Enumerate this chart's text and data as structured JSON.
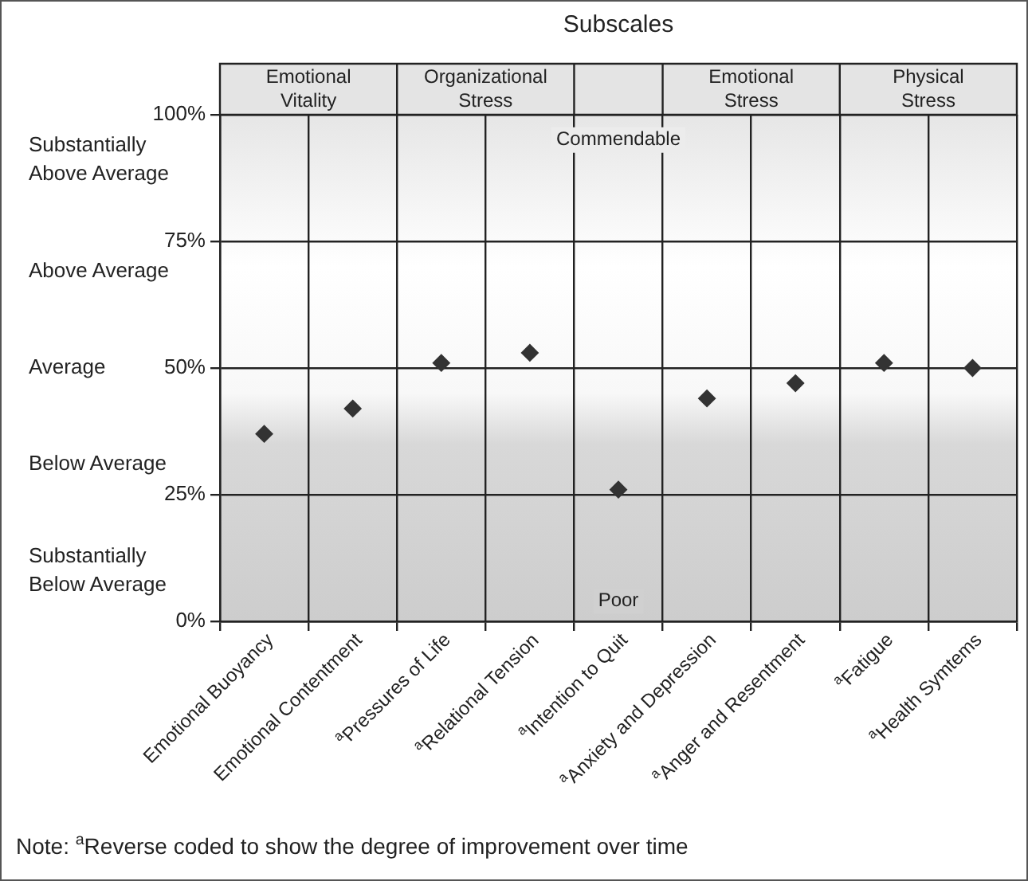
{
  "chart_data": {
    "type": "scatter",
    "title": "Subscales",
    "categories": [
      "Emotional Buoyancy",
      "Emotional Contentment",
      "$^{a}$Pressures of Life",
      "$^{a}$Relational Tension",
      "$^{a}$Intention to Quit",
      "$^{a}$Anxiety and Depression",
      "$^{a}$Anger and Resentment",
      "$^{a}$Fatigue",
      "$^{a}$Health Symtems"
    ],
    "values": [
      37,
      42,
      51,
      53,
      26,
      44,
      47,
      51,
      50
    ],
    "color": "#333333",
    "marker": "diamond",
    "grid": true,
    "legend": false,
    "ylim": [
      0,
      100
    ],
    "yticks": [
      {
        "value": 0,
        "label": "0%"
      },
      {
        "value": 25,
        "label": "25%"
      },
      {
        "value": 50,
        "label": "50%"
      },
      {
        "value": 75,
        "label": "75%"
      },
      {
        "value": 100,
        "label": "100%"
      }
    ],
    "annotations": [
      "Substantially Above Average",
      "Above Average",
      "Average",
      "Below Average",
      "Substantially Below Average",
      "Commendable",
      "Poor",
      "Emotional Vitality",
      "Organizational Stress",
      "Emotional Stress",
      "Physical Stress",
      "Note: $^{a}$Reverse coded to show the degree of improvement over time"
    ]
  }
}
